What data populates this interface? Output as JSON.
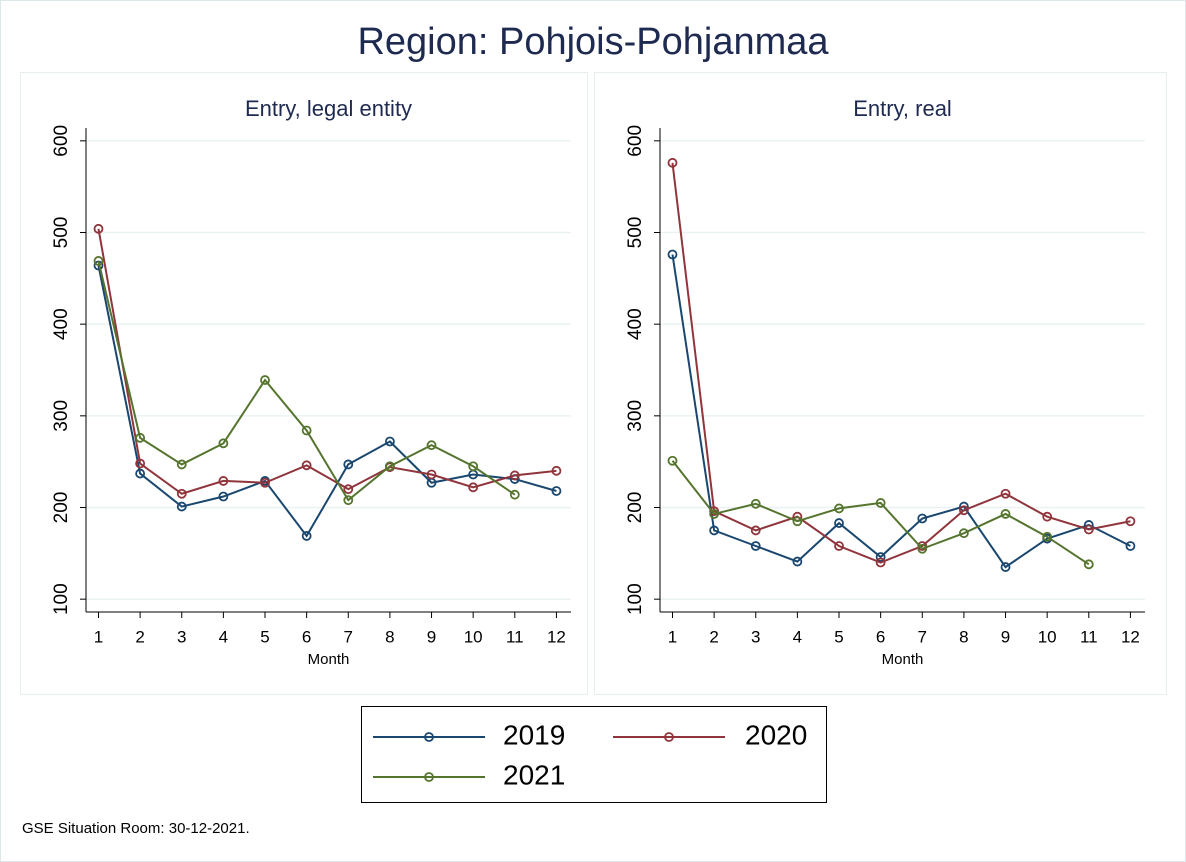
{
  "title": "Region: Pohjois-Pohjanmaa",
  "note": "GSE Situation Room: 30-12-2021.",
  "chart_data": [
    {
      "type": "line",
      "title": "Entry, legal entity",
      "xlabel": "Month",
      "x": [
        1,
        2,
        3,
        4,
        5,
        6,
        7,
        8,
        9,
        10,
        11,
        12
      ],
      "xlim": [
        0.7,
        12.35
      ],
      "ylim": [
        86,
        614
      ],
      "xticks": [
        1,
        2,
        3,
        4,
        5,
        6,
        7,
        8,
        9,
        10,
        11,
        12
      ],
      "yticks": [
        100,
        200,
        300,
        400,
        500,
        600
      ],
      "grid": true,
      "series": [
        {
          "name": "2019",
          "color": "#1a476f",
          "values": [
            464,
            237,
            201,
            212,
            229,
            169,
            247,
            272,
            227,
            236,
            231,
            218
          ]
        },
        {
          "name": "2020",
          "color": "#90353b",
          "values": [
            504,
            248,
            215,
            229,
            227,
            246,
            220,
            244,
            236,
            222,
            235,
            240
          ]
        },
        {
          "name": "2021",
          "color": "#55752f",
          "values": [
            469,
            276,
            247,
            270,
            339,
            284,
            208,
            245,
            268,
            245,
            214,
            null
          ]
        }
      ]
    },
    {
      "type": "line",
      "title": "Entry, real",
      "xlabel": "Month",
      "x": [
        1,
        2,
        3,
        4,
        5,
        6,
        7,
        8,
        9,
        10,
        11,
        12
      ],
      "xlim": [
        0.7,
        12.35
      ],
      "ylim": [
        86,
        614
      ],
      "xticks": [
        1,
        2,
        3,
        4,
        5,
        6,
        7,
        8,
        9,
        10,
        11,
        12
      ],
      "yticks": [
        100,
        200,
        300,
        400,
        500,
        600
      ],
      "grid": true,
      "series": [
        {
          "color": "#1a476f",
          "values": [
            476,
            175,
            158,
            141,
            183,
            146,
            188,
            201,
            135,
            166,
            181,
            158
          ]
        },
        {
          "color": "#90353b",
          "values": [
            576,
            196,
            175,
            190,
            158,
            140,
            158,
            197,
            215,
            190,
            176,
            185
          ]
        },
        {
          "color": "#55752f",
          "values": [
            251,
            193,
            204,
            185,
            199,
            205,
            155,
            172,
            193,
            168,
            138,
            null
          ]
        }
      ]
    }
  ]
}
